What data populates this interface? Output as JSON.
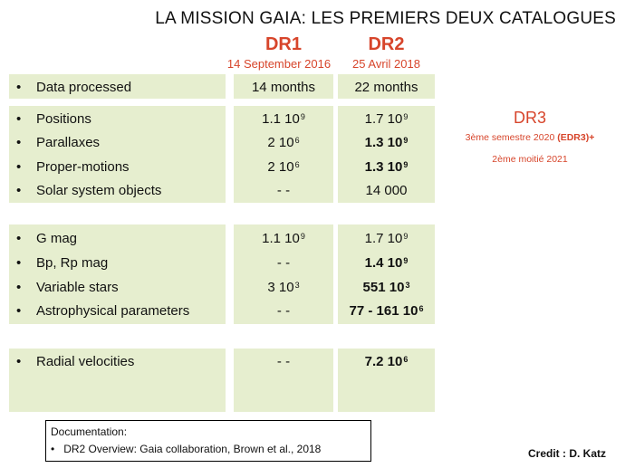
{
  "title": "LA MISSION GAIA: LES PREMIERS DEUX CATALOGUES",
  "dr1": {
    "label": "DR1",
    "date": "14 September 2016"
  },
  "dr2": {
    "label": "DR2",
    "date": "25 Avril 2018"
  },
  "bullet": "•",
  "rows": [
    {
      "label": "Data processed",
      "dr1": "14 months",
      "dr2": "22 months"
    },
    {
      "label": "Positions",
      "dr1": "1.1 10",
      "dr1_exp": "9",
      "dr2": "1.7 10",
      "dr2_exp": "9"
    },
    {
      "label": "Parallaxes",
      "dr1": "2 10",
      "dr1_exp": "6",
      "dr2": "1.3 10",
      "dr2_exp": "9"
    },
    {
      "label": "Proper-motions",
      "dr1": "2 10",
      "dr1_exp": "6",
      "dr2": "1.3 10",
      "dr2_exp": "9"
    },
    {
      "label": "Solar system objects",
      "dr1": "- -",
      "dr2": "14 000"
    },
    {
      "label": "G mag",
      "dr1": "1.1 10",
      "dr1_exp": "9",
      "dr2": "1.7 10",
      "dr2_exp": "9"
    },
    {
      "label": "Bp, Rp mag",
      "dr1": "- -",
      "dr2": "1.4 10",
      "dr2_exp": "9"
    },
    {
      "label": "Variable stars",
      "dr1": "3 10",
      "dr1_exp": "3",
      "dr2": "551 10",
      "dr2_exp": "3"
    },
    {
      "label": "Astrophysical parameters",
      "dr1": "- -",
      "dr2": "77 - 161 10",
      "dr2_exp": "6"
    },
    {
      "label": "Radial velocities",
      "dr1": "- -",
      "dr2": "7.2 10",
      "dr2_exp": "6"
    }
  ],
  "dr3": {
    "label": "DR3",
    "line1": "3ème semestre 2020",
    "line1_bold": "(EDR3)+",
    "line2": "2ème moitié 2021"
  },
  "documentation": {
    "heading": "Documentation:",
    "item": "DR2 Overview: Gaia collaboration, Brown et al., 2018"
  },
  "credit": "Credit : D. Katz"
}
